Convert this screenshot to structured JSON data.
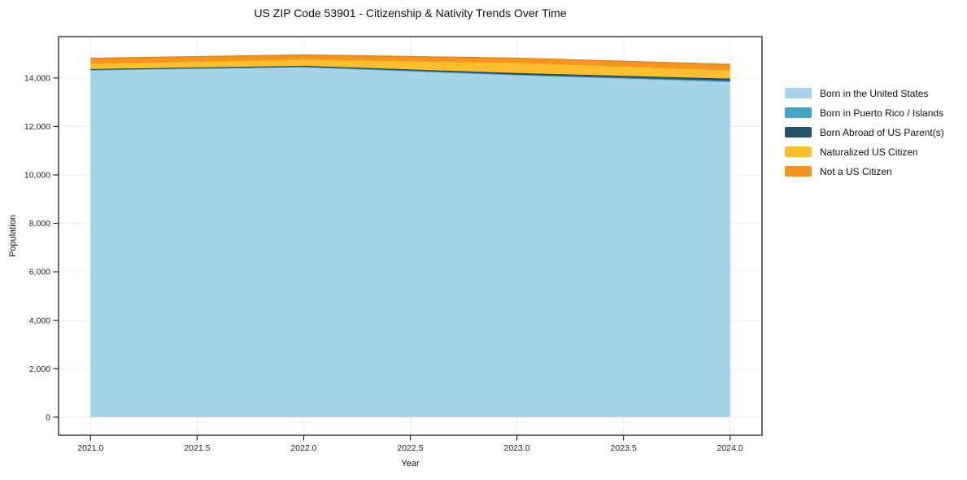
{
  "chart_data": {
    "type": "area",
    "stacked": true,
    "title": "US ZIP Code 53901 - Citizenship & Nativity Trends Over Time",
    "xlabel": "Year",
    "ylabel": "Population",
    "x": [
      2021,
      2022,
      2023,
      2024
    ],
    "series": [
      {
        "name": "Born in the United States",
        "color": "#a6d4e6",
        "edge": "#8fc1d8",
        "values": [
          14320,
          14445,
          14115,
          13840
        ]
      },
      {
        "name": "Born in Puerto Rico / Islands",
        "color": "#45a5c4",
        "edge": "#3a92b0",
        "values": [
          20,
          25,
          30,
          45
        ]
      },
      {
        "name": "Born Abroad of US Parent(s)",
        "color": "#27536a",
        "edge": "#1e4254",
        "values": [
          30,
          35,
          60,
          90
        ]
      },
      {
        "name": "Naturalized US Citizen",
        "color": "#fcc02e",
        "edge": "#f2b01c",
        "values": [
          225,
          260,
          425,
          345
        ]
      },
      {
        "name": "Not a US Citizen",
        "color": "#f79420",
        "edge": "#e3820f",
        "values": [
          220,
          190,
          190,
          245
        ]
      }
    ],
    "xlim": [
      2020.85,
      2024.15
    ],
    "ylim": [
      -750,
      15710
    ],
    "x_ticks": [
      {
        "v": 2021.0,
        "label": "2021.0"
      },
      {
        "v": 2021.5,
        "label": "2021.5"
      },
      {
        "v": 2022.0,
        "label": "2022.0"
      },
      {
        "v": 2022.5,
        "label": "2022.5"
      },
      {
        "v": 2023.0,
        "label": "2023.0"
      },
      {
        "v": 2023.5,
        "label": "2023.5"
      },
      {
        "v": 2024.0,
        "label": "2024.0"
      }
    ],
    "y_ticks": [
      {
        "v": 0,
        "label": "0"
      },
      {
        "v": 2000,
        "label": "2,000"
      },
      {
        "v": 4000,
        "label": "4,000"
      },
      {
        "v": 6000,
        "label": "6,000"
      },
      {
        "v": 8000,
        "label": "8,000"
      },
      {
        "v": 10000,
        "label": "10,000"
      },
      {
        "v": 12000,
        "label": "12,000"
      },
      {
        "v": 14000,
        "label": "14,000"
      }
    ],
    "grid": true,
    "legend_position": "right",
    "colors": {
      "frame": "#1a1a1a",
      "gridline": "#ebebeb",
      "tick": "#262626",
      "tick_label": "#262626",
      "plot_background": "#ffffff"
    }
  }
}
